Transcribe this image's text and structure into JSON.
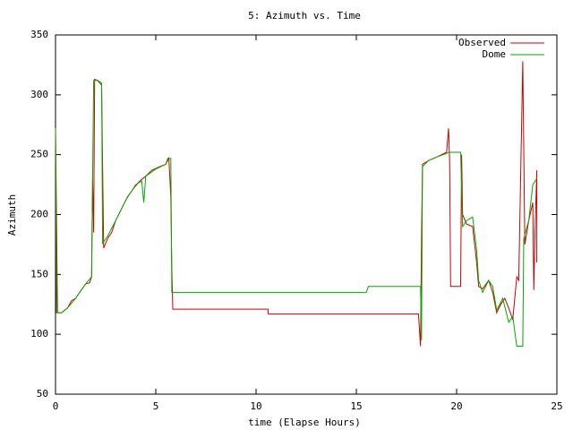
{
  "chart_data": {
    "type": "line",
    "title": "5: Azimuth vs. Time",
    "xlabel": "time (Elapse Hours)",
    "ylabel": "Azimuth",
    "xlim": [
      0,
      25
    ],
    "xticks": [
      0,
      5,
      10,
      15,
      20,
      25
    ],
    "ylim": [
      50,
      350
    ],
    "yticks": [
      50,
      100,
      150,
      200,
      250,
      300,
      350
    ],
    "legend": "upper right",
    "series": [
      {
        "name": "Observed",
        "color": "#cc0000",
        "x": [
          0,
          0.05,
          0.1,
          0.3,
          0.6,
          0.8,
          1.0,
          1.2,
          1.5,
          1.7,
          1.8,
          1.85,
          1.9,
          1.95,
          2.1,
          2.3,
          2.35,
          2.4,
          2.6,
          2.8,
          3.0,
          3.3,
          3.6,
          3.9,
          4.2,
          4.5,
          4.8,
          5.2,
          5.5,
          5.65,
          5.75,
          5.8,
          5.85,
          10.6,
          10.6,
          18.1,
          18.2,
          18.25,
          18.3,
          18.6,
          19.0,
          19.5,
          19.6,
          19.65,
          19.7,
          20.2,
          20.25,
          20.3,
          20.5,
          20.8,
          21.0,
          21.1,
          21.3,
          21.6,
          21.8,
          22.0,
          22.2,
          22.4,
          22.6,
          22.8,
          23.0,
          23.1,
          23.3,
          23.4,
          23.6,
          23.8,
          23.85,
          23.9,
          24.0,
          24.0
        ],
        "values": [
          272,
          200,
          118,
          118,
          122,
          128,
          130,
          135,
          142,
          143,
          148,
          230,
          185,
          313,
          312,
          308,
          240,
          172,
          180,
          185,
          195,
          205,
          215,
          222,
          228,
          232,
          237,
          240,
          242,
          247,
          215,
          155,
          121,
          121,
          117,
          117,
          90,
          180,
          242,
          245,
          248,
          252,
          272,
          245,
          140,
          140,
          250,
          200,
          192,
          190,
          160,
          140,
          138,
          145,
          135,
          118,
          125,
          130,
          122,
          112,
          148,
          145,
          328,
          175,
          195,
          210,
          137,
          180,
          237,
          160
        ]
      },
      {
        "name": "Dome",
        "color": "#00aa00",
        "x": [
          0,
          0.05,
          0.3,
          0.6,
          1.0,
          1.5,
          1.8,
          1.9,
          2.1,
          2.3,
          2.35,
          2.6,
          3.0,
          3.5,
          4.0,
          4.3,
          4.4,
          4.5,
          5.0,
          5.5,
          5.6,
          5.75,
          5.8,
          15.5,
          15.6,
          18.2,
          18.25,
          18.3,
          18.6,
          19.0,
          19.5,
          19.6,
          20.2,
          20.3,
          20.5,
          20.8,
          21.0,
          21.1,
          21.3,
          21.6,
          21.8,
          22.0,
          22.3,
          22.6,
          22.8,
          23.0,
          23.3,
          23.35,
          23.6,
          23.8,
          24.0
        ],
        "values": [
          272,
          118,
          118,
          122,
          130,
          142,
          148,
          312,
          312,
          310,
          176,
          182,
          195,
          212,
          225,
          228,
          210,
          232,
          238,
          242,
          247,
          247,
          135,
          135,
          140,
          140,
          95,
          240,
          245,
          248,
          251,
          252,
          252,
          190,
          195,
          198,
          170,
          145,
          135,
          145,
          140,
          120,
          130,
          110,
          115,
          90,
          90,
          180,
          195,
          225,
          230
        ]
      }
    ]
  }
}
